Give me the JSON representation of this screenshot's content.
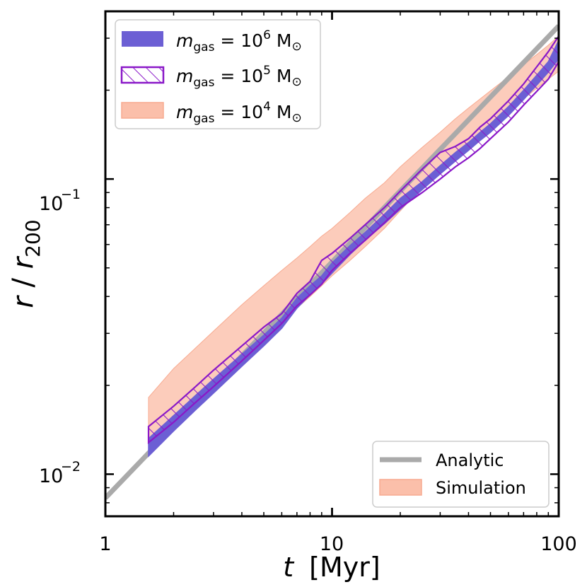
{
  "chart_data": {
    "type": "line",
    "xscale": "log",
    "yscale": "log",
    "xlim": [
      1,
      100
    ],
    "ylim": [
      0.0072,
      0.37
    ],
    "xlabel": {
      "symbol": "t",
      "unit": "[Myr]"
    },
    "ylabel": {
      "symbol": "r",
      "sep": " / ",
      "sub_symbol": "r",
      "subscript": "200"
    },
    "x_ticks": [
      {
        "value": 1,
        "label": "1"
      },
      {
        "value": 10,
        "label": "10"
      },
      {
        "value": 100,
        "label": "100"
      }
    ],
    "y_ticks": [
      {
        "value": 0.01,
        "base": "10",
        "exp": "−2"
      },
      {
        "value": 0.1,
        "base": "10",
        "exp": "−1"
      }
    ],
    "legend_top": {
      "position": "upper-left",
      "entries": [
        {
          "name": "m",
          "sub": "gas",
          "eq": " = 10",
          "exp": "6",
          "unit": " M",
          "unit_sub": "⊙",
          "style": "solid"
        },
        {
          "name": "m",
          "sub": "gas",
          "eq": " = 10",
          "exp": "5",
          "unit": " M",
          "unit_sub": "⊙",
          "style": "hatch"
        },
        {
          "name": "m",
          "sub": "gas",
          "eq": " = 10",
          "exp": "4",
          "unit": " M",
          "unit_sub": "⊙",
          "style": "light"
        }
      ]
    },
    "legend_bottom": {
      "position": "lower-right",
      "entries": [
        {
          "label": "Analytic",
          "style": "line"
        },
        {
          "label": "Simulation",
          "style": "band"
        }
      ]
    },
    "analytic": {
      "name": "Analytic",
      "x": [
        1,
        100
      ],
      "y": [
        0.0083,
        0.33
      ],
      "color": "#aaaaaa"
    },
    "series": [
      {
        "name": "m_gas = 10^4 M_sun",
        "style": "light",
        "color": "#fbbfaa",
        "x": [
          1.55,
          2,
          3,
          4,
          5,
          6,
          7,
          8,
          9,
          10,
          12,
          14,
          17,
          20,
          25,
          30,
          35,
          40,
          50,
          60,
          70,
          80,
          90,
          100
        ],
        "lower": [
          0.0118,
          0.0148,
          0.0198,
          0.0245,
          0.0288,
          0.0328,
          0.0365,
          0.04,
          0.0435,
          0.047,
          0.053,
          0.059,
          0.068,
          0.078,
          0.094,
          0.107,
          0.12,
          0.132,
          0.152,
          0.17,
          0.187,
          0.203,
          0.218,
          0.232
        ],
        "upper": [
          0.0182,
          0.0228,
          0.0305,
          0.0375,
          0.0435,
          0.049,
          0.054,
          0.059,
          0.064,
          0.068,
          0.077,
          0.086,
          0.097,
          0.11,
          0.128,
          0.144,
          0.16,
          0.174,
          0.199,
          0.222,
          0.244,
          0.264,
          0.284,
          0.305
        ]
      },
      {
        "name": "m_gas = 10^5 M_sun",
        "style": "hatch",
        "color": "#8a18c8",
        "x": [
          1.55,
          2,
          2.5,
          3,
          4,
          5,
          6,
          7,
          8,
          9,
          10,
          12,
          14,
          17,
          20,
          25,
          30,
          35,
          40,
          45,
          50,
          60,
          70,
          80,
          90,
          100
        ],
        "lower": [
          0.0128,
          0.015,
          0.0175,
          0.0198,
          0.0242,
          0.0284,
          0.0324,
          0.0372,
          0.0405,
          0.044,
          0.049,
          0.056,
          0.062,
          0.071,
          0.08,
          0.09,
          0.1,
          0.11,
          0.118,
          0.127,
          0.137,
          0.156,
          0.178,
          0.198,
          0.218,
          0.25
        ],
        "upper": [
          0.0145,
          0.017,
          0.0198,
          0.0225,
          0.0272,
          0.0315,
          0.035,
          0.041,
          0.045,
          0.053,
          0.056,
          0.063,
          0.07,
          0.08,
          0.091,
          0.108,
          0.123,
          0.129,
          0.137,
          0.15,
          0.16,
          0.184,
          0.21,
          0.24,
          0.27,
          0.305
        ]
      },
      {
        "name": "m_gas = 10^6 M_sun",
        "style": "solid",
        "color": "#6c5fd4",
        "x": [
          1.55,
          2,
          2.5,
          3,
          4,
          5,
          6,
          7,
          8,
          9,
          10,
          12,
          14,
          17,
          20,
          25,
          30,
          35,
          40,
          45,
          50,
          60,
          70,
          80,
          90,
          100
        ],
        "lower": [
          0.0115,
          0.014,
          0.0165,
          0.0188,
          0.0232,
          0.0272,
          0.0312,
          0.0365,
          0.0405,
          0.044,
          0.048,
          0.0555,
          0.062,
          0.0705,
          0.079,
          0.092,
          0.104,
          0.115,
          0.125,
          0.135,
          0.144,
          0.164,
          0.186,
          0.208,
          0.23,
          0.255
        ],
        "upper": [
          0.0132,
          0.0158,
          0.0185,
          0.021,
          0.0255,
          0.0296,
          0.0338,
          0.0395,
          0.0435,
          0.047,
          0.052,
          0.0595,
          0.066,
          0.076,
          0.086,
          0.098,
          0.111,
          0.123,
          0.133,
          0.144,
          0.154,
          0.176,
          0.2,
          0.225,
          0.25,
          0.295
        ]
      }
    ]
  }
}
